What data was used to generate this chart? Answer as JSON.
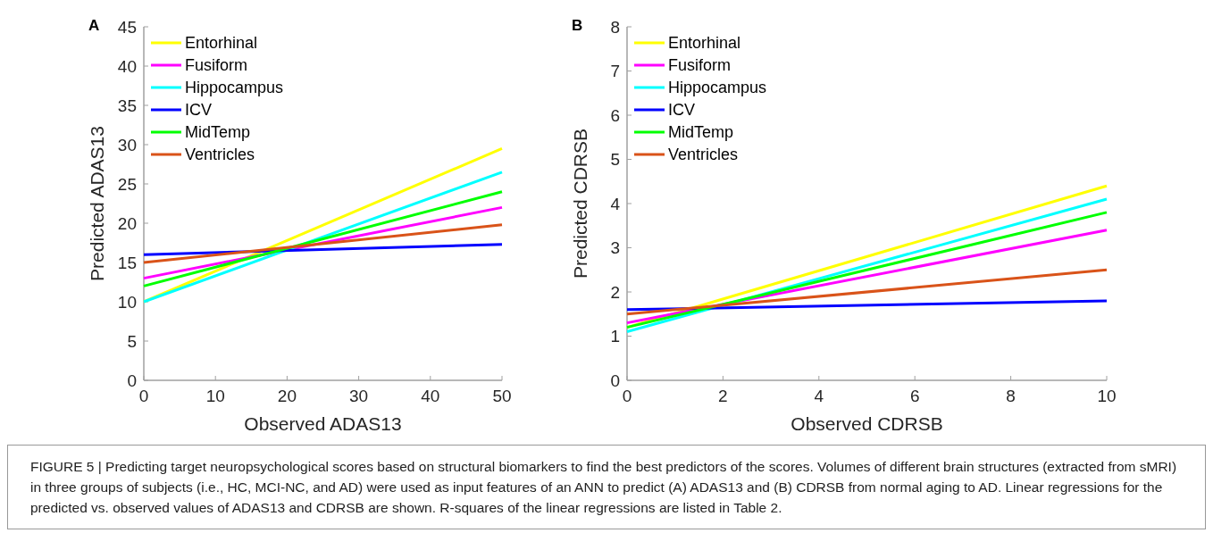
{
  "chart_data": [
    {
      "type": "line",
      "title": "A",
      "xlabel": "Observed ADAS13",
      "ylabel": "Predicted ADAS13",
      "x": [
        0,
        50
      ],
      "xlim": [
        0,
        50
      ],
      "xticks": [
        0,
        10,
        20,
        30,
        40,
        50
      ],
      "ylim": [
        0,
        45
      ],
      "yticks": [
        0,
        5,
        10,
        15,
        20,
        25,
        30,
        35,
        40,
        45
      ],
      "legend": "top left",
      "grid": false,
      "series": [
        {
          "name": "Entorhinal",
          "color": "#ffff00",
          "values": [
            10,
            29.5
          ]
        },
        {
          "name": "Fusiform",
          "color": "#ff00ff",
          "values": [
            13,
            22
          ]
        },
        {
          "name": "Hippocampus",
          "color": "#00ffff",
          "values": [
            10,
            26.5
          ]
        },
        {
          "name": "ICV",
          "color": "#0000ff",
          "values": [
            16,
            17.3
          ]
        },
        {
          "name": "MidTemp",
          "color": "#00ff00",
          "values": [
            12,
            24
          ]
        },
        {
          "name": "Ventricles",
          "color": "#d95319",
          "values": [
            15,
            19.8
          ]
        }
      ],
      "annotations": [
        "FIGURE 5 | Predicting target neuropsychological scores based on structural biomarkers to find the best predictors of the scores. Volumes of different brain structures (extracted from sMRI) in three groups of subjects (i.e., HC, MCI-NC, and AD) were used as input features of an ANN to predict (A) ADAS13 and (B) CDRSB from normal aging to AD. Linear regressions for the predicted vs. observed values of ADAS13 and CDRSB are shown. R-squares of the linear regressions are listed in Table 2."
      ]
    },
    {
      "type": "line",
      "title": "B",
      "xlabel": "Observed CDRSB",
      "ylabel": "Predicted CDRSB",
      "x": [
        0,
        10
      ],
      "xlim": [
        0,
        10
      ],
      "xticks": [
        0,
        2,
        4,
        6,
        8,
        10
      ],
      "ylim": [
        0,
        8
      ],
      "yticks": [
        0,
        1,
        2,
        3,
        4,
        5,
        6,
        7,
        8
      ],
      "legend": "top left",
      "grid": false,
      "series": [
        {
          "name": "Entorhinal",
          "color": "#ffff00",
          "values": [
            1.2,
            4.4
          ]
        },
        {
          "name": "Fusiform",
          "color": "#ff00ff",
          "values": [
            1.3,
            3.4
          ]
        },
        {
          "name": "Hippocampus",
          "color": "#00ffff",
          "values": [
            1.1,
            4.1
          ]
        },
        {
          "name": "ICV",
          "color": "#0000ff",
          "values": [
            1.6,
            1.8
          ]
        },
        {
          "name": "MidTemp",
          "color": "#00ff00",
          "values": [
            1.2,
            3.8
          ]
        },
        {
          "name": "Ventricles",
          "color": "#d95319",
          "values": [
            1.5,
            2.5
          ]
        }
      ]
    }
  ]
}
